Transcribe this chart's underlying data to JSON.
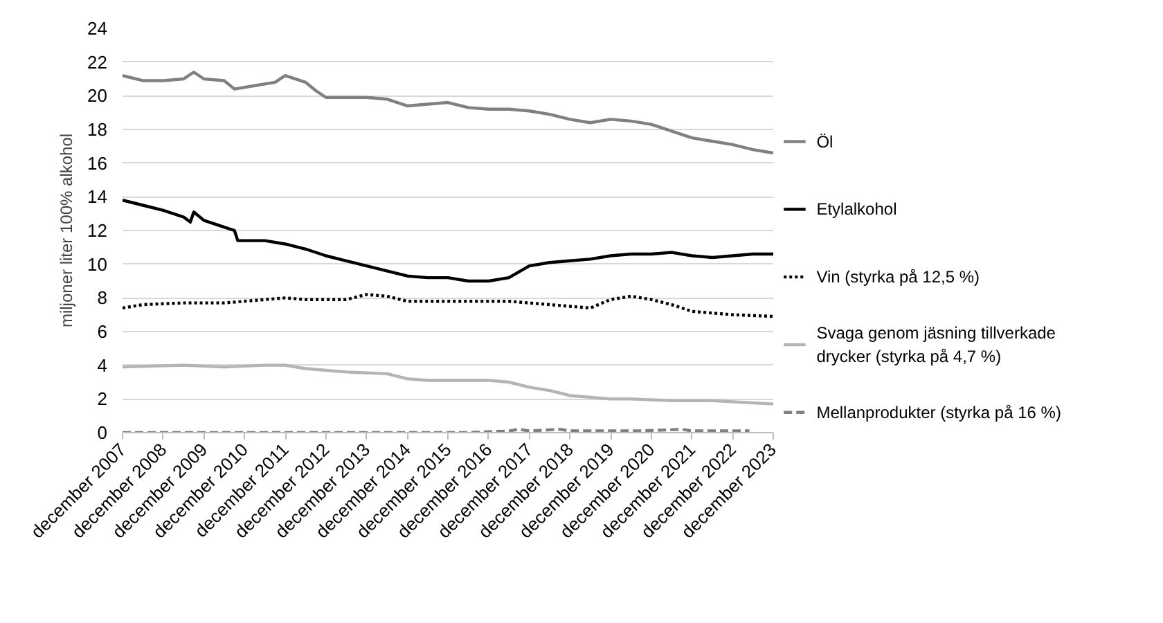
{
  "chart_data": {
    "type": "line",
    "ylabel": "miljoner liter 100% alkohol",
    "xlim": [
      "2007-12",
      "2023-12"
    ],
    "ylim": [
      0,
      24
    ],
    "yticks": [
      0,
      2,
      4,
      6,
      8,
      10,
      12,
      14,
      16,
      18,
      20,
      22,
      24
    ],
    "xticks": [
      {
        "value": "2007-12",
        "label": "december 2007"
      },
      {
        "value": "2008-12",
        "label": "december 2008"
      },
      {
        "value": "2009-12",
        "label": "december 2009"
      },
      {
        "value": "2010-12",
        "label": "december 2010"
      },
      {
        "value": "2011-12",
        "label": "december 2011"
      },
      {
        "value": "2012-12",
        "label": "december 2012"
      },
      {
        "value": "2013-12",
        "label": "december 2013"
      },
      {
        "value": "2014-12",
        "label": "december 2014"
      },
      {
        "value": "2015-12",
        "label": "december 2015"
      },
      {
        "value": "2016-12",
        "label": "december 2016"
      },
      {
        "value": "2017-12",
        "label": "december 2017"
      },
      {
        "value": "2018-12",
        "label": "december 2018"
      },
      {
        "value": "2019-12",
        "label": "december 2019"
      },
      {
        "value": "2020-12",
        "label": "december 2020"
      },
      {
        "value": "2021-12",
        "label": "december 2021"
      },
      {
        "value": "2022-12",
        "label": "december 2022"
      },
      {
        "value": "2023-12",
        "label": "december 2023"
      }
    ],
    "grid": "y",
    "legend": "right",
    "marker": "none",
    "series": [
      {
        "name": "Öl",
        "color": "#808080",
        "line_style": "solid",
        "x": [
          "2007-12",
          "2008-06",
          "2008-12",
          "2009-06",
          "2009-09",
          "2009-12",
          "2010-06",
          "2010-09",
          "2011-03",
          "2011-09",
          "2011-12",
          "2012-06",
          "2012-09",
          "2012-12",
          "2013-06",
          "2013-12",
          "2014-06",
          "2014-12",
          "2015-06",
          "2015-12",
          "2016-06",
          "2016-12",
          "2017-06",
          "2017-12",
          "2018-06",
          "2018-12",
          "2019-06",
          "2019-12",
          "2020-06",
          "2020-12",
          "2021-06",
          "2021-12",
          "2022-06",
          "2022-12",
          "2023-06",
          "2023-12"
        ],
        "values": [
          21.2,
          20.9,
          20.9,
          21.0,
          21.4,
          21.0,
          20.9,
          20.4,
          20.6,
          20.8,
          21.2,
          20.8,
          20.3,
          19.9,
          19.9,
          19.9,
          19.8,
          19.4,
          19.5,
          19.6,
          19.3,
          19.2,
          19.2,
          19.1,
          18.9,
          18.6,
          18.4,
          18.6,
          18.5,
          18.3,
          17.9,
          17.5,
          17.3,
          17.1,
          16.8,
          16.6
        ]
      },
      {
        "name": "Etylalkohol",
        "color": "#000000",
        "line_style": "solid",
        "x": [
          "2007-12",
          "2008-06",
          "2008-12",
          "2009-06",
          "2009-08",
          "2009-09",
          "2009-12",
          "2010-06",
          "2010-09",
          "2010-10",
          "2011-06",
          "2011-12",
          "2012-06",
          "2012-12",
          "2013-06",
          "2013-12",
          "2014-06",
          "2014-12",
          "2015-06",
          "2015-12",
          "2016-06",
          "2016-12",
          "2017-06",
          "2017-12",
          "2018-06",
          "2018-12",
          "2019-06",
          "2019-12",
          "2020-06",
          "2020-12",
          "2021-06",
          "2021-12",
          "2022-06",
          "2022-12",
          "2023-06",
          "2023-12"
        ],
        "values": [
          13.8,
          13.5,
          13.2,
          12.8,
          12.5,
          13.1,
          12.6,
          12.2,
          12.0,
          11.4,
          11.4,
          11.2,
          10.9,
          10.5,
          10.2,
          9.9,
          9.6,
          9.3,
          9.2,
          9.2,
          9.0,
          9.0,
          9.2,
          9.9,
          10.1,
          10.2,
          10.3,
          10.5,
          10.6,
          10.6,
          10.7,
          10.5,
          10.4,
          10.5,
          10.6,
          10.6
        ]
      },
      {
        "name": "Vin (styrka på 12,5 %)",
        "color": "#000000",
        "line_style": "dotted",
        "x": [
          "2007-12",
          "2008-06",
          "2009-06",
          "2010-06",
          "2011-06",
          "2011-12",
          "2012-06",
          "2013-06",
          "2013-12",
          "2014-06",
          "2014-12",
          "2015-06",
          "2016-06",
          "2016-12",
          "2017-06",
          "2017-12",
          "2018-06",
          "2018-12",
          "2019-06",
          "2019-12",
          "2020-06",
          "2020-12",
          "2021-06",
          "2021-12",
          "2022-06",
          "2022-12",
          "2023-12"
        ],
        "values": [
          7.4,
          7.6,
          7.7,
          7.7,
          7.9,
          8.0,
          7.9,
          7.9,
          8.2,
          8.1,
          7.8,
          7.8,
          7.8,
          7.8,
          7.8,
          7.7,
          7.6,
          7.5,
          7.4,
          7.9,
          8.1,
          7.9,
          7.6,
          7.2,
          7.1,
          7.0,
          6.9
        ]
      },
      {
        "name": "Svaga genom jäsning tillverkade drycker (styrka på 4,7 %)",
        "color": "#b4b4b4",
        "line_style": "solid",
        "x": [
          "2007-12",
          "2009-06",
          "2010-06",
          "2011-06",
          "2011-12",
          "2012-06",
          "2013-06",
          "2014-06",
          "2014-12",
          "2015-06",
          "2016-06",
          "2016-12",
          "2017-06",
          "2017-12",
          "2018-06",
          "2018-12",
          "2019-06",
          "2019-12",
          "2020-06",
          "2021-06",
          "2022-06",
          "2023-12"
        ],
        "values": [
          3.9,
          4.0,
          3.9,
          4.0,
          4.0,
          3.8,
          3.6,
          3.5,
          3.2,
          3.1,
          3.1,
          3.1,
          3.0,
          2.7,
          2.5,
          2.2,
          2.1,
          2.0,
          2.0,
          1.9,
          1.9,
          1.7
        ]
      },
      {
        "name": "Mellanprodukter (styrka på 16 %)",
        "color": "#808080",
        "line_style": "dashed",
        "x": [
          "2007-12",
          "2016-06",
          "2017-06",
          "2017-09",
          "2017-12",
          "2018-09",
          "2018-12",
          "2019-12",
          "2020-09",
          "2021-09",
          "2021-12",
          "2022-12",
          "2023-05"
        ],
        "values": [
          0,
          0,
          0.1,
          0.2,
          0.1,
          0.2,
          0.1,
          0.1,
          0.1,
          0.2,
          0.1,
          0.1,
          0.1
        ]
      }
    ]
  }
}
